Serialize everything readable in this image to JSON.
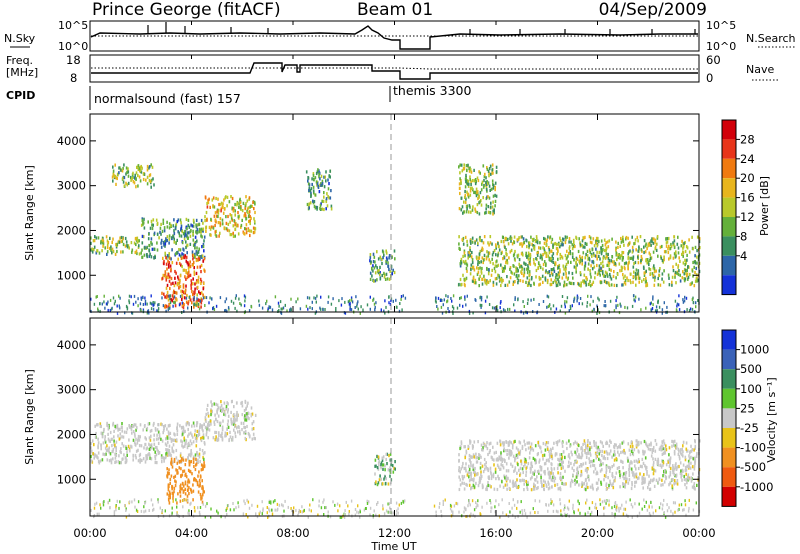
{
  "header": {
    "station": "Prince George (fitACF)",
    "beam": "Beam 01",
    "date": "04/Sep/2009"
  },
  "top_panels": {
    "nsky_label": "N.Sky",
    "nsky_ticks": [
      "10^5",
      "10^0"
    ],
    "nsearch_label": "N.Search",
    "nsearch_ticks": [
      "10^5",
      "10^0"
    ],
    "freq_label_line1": "Freq.",
    "freq_label_line2": "[MHz]",
    "freq_ticks": [
      "18",
      "8"
    ],
    "nave_label": "Nave",
    "nave_ticks": [
      "60",
      "0"
    ],
    "cpid_label": "CPID",
    "cpid_segments": [
      {
        "label": "normalsound (fast) 157",
        "start_hour": 0,
        "end_hour": 12
      },
      {
        "label": "themis 3300",
        "start_hour": 12,
        "end_hour": 24
      }
    ]
  },
  "chart_data": [
    {
      "type": "heatmap",
      "name": "power",
      "xlabel": "",
      "ylabel": "Slant Range [km]",
      "xlim": [
        0,
        24
      ],
      "ylim": [
        180,
        4600
      ],
      "y_ticks": [
        "1000",
        "2000",
        "3000",
        "4000"
      ],
      "y_tick_values": [
        1000,
        2000,
        3000,
        4000
      ],
      "colorbar_label": "Power [dB]",
      "colorbar_ticks": [
        "4",
        "8",
        "12",
        "16",
        "20",
        "24",
        "28"
      ],
      "colorbar_colors": [
        "#1432d8",
        "#2d66a8",
        "#3a8f5f",
        "#64b03a",
        "#b9c92b",
        "#e8b51d",
        "#f07a10",
        "#e8351a",
        "#d2000a"
      ],
      "data_gap_hours": [
        12.5,
        13.5
      ],
      "marker_hour": 12,
      "regions": [
        {
          "hours": [
            0,
            2.0
          ],
          "range_km": [
            1500,
            1900
          ],
          "dominant_db": 12
        },
        {
          "hours": [
            2.0,
            4.5
          ],
          "range_km": [
            1400,
            2300
          ],
          "dominant_db": 8
        },
        {
          "hours": [
            4.5,
            6.5
          ],
          "range_km": [
            1900,
            2800
          ],
          "dominant_db": 16
        },
        {
          "hours": [
            2.8,
            4.5
          ],
          "range_km": [
            300,
            1500
          ],
          "dominant_db": 22
        },
        {
          "hours": [
            0.8,
            2.5
          ],
          "range_km": [
            3000,
            3500
          ],
          "dominant_db": 12
        },
        {
          "hours": [
            8.5,
            9.5
          ],
          "range_km": [
            2500,
            3400
          ],
          "dominant_db": 8
        },
        {
          "hours": [
            11.0,
            12.0
          ],
          "range_km": [
            900,
            1600
          ],
          "dominant_db": 8
        },
        {
          "hours": [
            14.5,
            24.0
          ],
          "range_km": [
            800,
            1900
          ],
          "dominant_db": 12
        },
        {
          "hours": [
            14.5,
            16.0
          ],
          "range_km": [
            2400,
            3500
          ],
          "dominant_db": 12
        }
      ]
    },
    {
      "type": "heatmap",
      "name": "velocity",
      "xlabel": "Time UT",
      "ylabel": "Slant Range [km]",
      "xlim": [
        0,
        24
      ],
      "ylim": [
        180,
        4600
      ],
      "x_ticks": [
        "00:00",
        "04:00",
        "08:00",
        "12:00",
        "16:00",
        "20:00",
        "00:00"
      ],
      "x_tick_values": [
        0,
        4,
        8,
        12,
        16,
        20,
        24
      ],
      "y_ticks": [
        "1000",
        "2000",
        "3000",
        "4000"
      ],
      "y_tick_values": [
        1000,
        2000,
        3000,
        4000
      ],
      "colorbar_label": "Velocity [m s⁻¹]",
      "colorbar_ticks": [
        "1000",
        "500",
        "100",
        "25",
        "-25",
        "-100",
        "-500",
        "-1000"
      ],
      "colorbar_colors": [
        "#1432d8",
        "#3a62b8",
        "#3a8f5f",
        "#5fc52f",
        "#c8c8c8",
        "#e8c318",
        "#f09020",
        "#ef5a10",
        "#d20000"
      ],
      "data_gap_hours": [
        12.5,
        13.5
      ],
      "marker_hour": 12,
      "regions": [
        {
          "hours": [
            0,
            4.5
          ],
          "range_km": [
            1400,
            2300
          ],
          "dominant_ms": 0
        },
        {
          "hours": [
            4.5,
            6.5
          ],
          "range_km": [
            1900,
            2800
          ],
          "dominant_ms": 0
        },
        {
          "hours": [
            3.0,
            4.5
          ],
          "range_km": [
            500,
            1500
          ],
          "dominant_ms": -300
        },
        {
          "hours": [
            11.2,
            12.0
          ],
          "range_km": [
            900,
            1600
          ],
          "dominant_ms": 100
        },
        {
          "hours": [
            14.5,
            24.0
          ],
          "range_km": [
            800,
            1900
          ],
          "dominant_ms": 0
        }
      ]
    }
  ]
}
